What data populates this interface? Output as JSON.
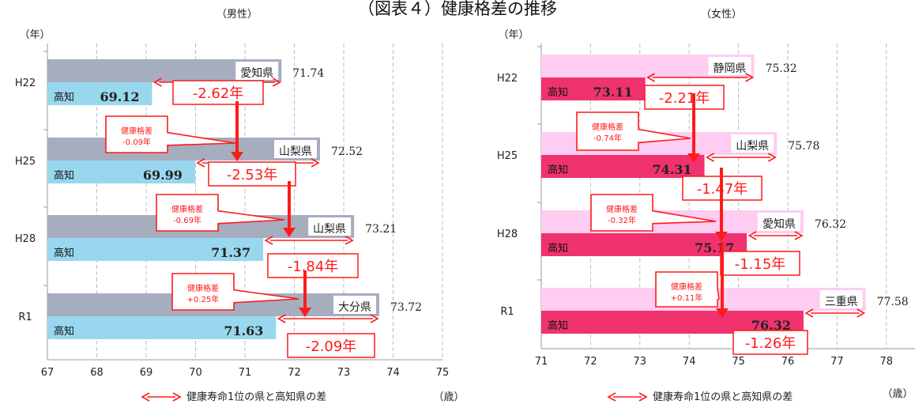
{
  "title": "（図表４）健康格差の推移",
  "colors": {
    "grid": "#bdbdbd",
    "axis": "#999999",
    "red": "#ff1a1a",
    "male_top": "#a6adbf",
    "male_kochi": "#99d7ee",
    "female_top": "#ffccf2",
    "female_kochi": "#f0326e",
    "ink": "#222222"
  },
  "chart_data": [
    {
      "type": "bar",
      "orientation": "horizontal",
      "panel_label": "（男性）",
      "y_axis_unit": "（年）",
      "x_axis_unit": "（歳）",
      "xlim": [
        67,
        75
      ],
      "xticks": [
        67,
        68,
        69,
        70,
        71,
        72,
        73,
        74,
        75
      ],
      "grid": true,
      "categories": [
        "H22",
        "H25",
        "H28",
        "R1"
      ],
      "top_prefecture": {
        "labels": [
          "愛知県",
          "山梨県",
          "山梨県",
          "大分県"
        ],
        "values": [
          71.74,
          72.52,
          73.21,
          73.72
        ],
        "value_labels": [
          "71.74",
          "72.52",
          "73.21",
          "73.72"
        ]
      },
      "kochi": {
        "label": "高知",
        "values": [
          69.12,
          69.99,
          71.37,
          71.63
        ],
        "value_labels": [
          "69.12",
          "69.99",
          "71.37",
          "71.63"
        ]
      },
      "gaps": [
        "-2.62年",
        "-2.53年",
        "-1.84年",
        "-2.09年"
      ],
      "gap_changes": [
        {
          "title": "健康格差",
          "value": "-0.09年"
        },
        {
          "title": "健康格差",
          "value": "-0.69年"
        },
        {
          "title": "健康格差",
          "value": "+0.25年"
        }
      ],
      "legend": "健康寿命1位の県と高知県の差"
    },
    {
      "type": "bar",
      "orientation": "horizontal",
      "panel_label": "（女性）",
      "y_axis_unit": "（年）",
      "x_axis_unit": "（歳）",
      "xlim": [
        71,
        79
      ],
      "xticks": [
        71,
        72,
        73,
        74,
        75,
        76,
        77,
        78,
        79
      ],
      "grid": true,
      "categories": [
        "H22",
        "H25",
        "H28",
        "R1"
      ],
      "top_prefecture": {
        "labels": [
          "静岡県",
          "山梨県",
          "愛知県",
          "三重県"
        ],
        "values": [
          75.32,
          75.78,
          76.32,
          77.58
        ],
        "value_labels": [
          "75.32",
          "75.78",
          "76.32",
          "77.58"
        ]
      },
      "kochi": {
        "label": "高知",
        "values": [
          73.11,
          74.31,
          75.17,
          76.32
        ],
        "value_labels": [
          "73.11",
          "74.31",
          "75.17",
          "76.32"
        ]
      },
      "gaps": [
        "-2.21年",
        "-1.47年",
        "-1.15年",
        "-1.26年"
      ],
      "gap_changes": [
        {
          "title": "健康格差",
          "value": "-0.74年"
        },
        {
          "title": "健康格差",
          "value": "-0.32年"
        },
        {
          "title": "健康格差",
          "value": "+0.11年"
        }
      ],
      "legend": "健康寿命1位の県と高知県の差"
    }
  ]
}
